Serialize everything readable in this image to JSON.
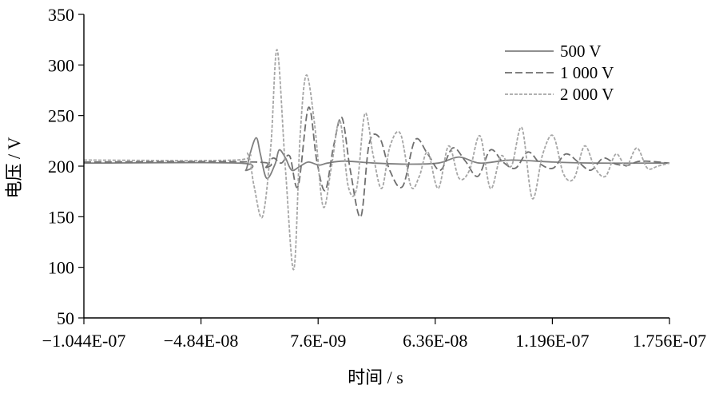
{
  "chart_data": {
    "type": "line",
    "xlabel": "时间 / s",
    "ylabel": "电压 / V",
    "x_tick_labels": [
      "−1.044E-07",
      "−4.84E-08",
      "7.6E-09",
      "6.36E-08",
      "1.196E-07",
      "1.756E-07"
    ],
    "x_tick_values": [
      -1.044e-07,
      -4.84e-08,
      7.6e-09,
      6.36e-08,
      1.196e-07,
      1.756e-07
    ],
    "xlim": [
      -1.044e-07,
      1.756e-07
    ],
    "ylim": [
      50,
      350
    ],
    "y_ticks": [
      50,
      100,
      150,
      200,
      250,
      300,
      350
    ],
    "grid": false,
    "legend_position": "top-right",
    "series": [
      {
        "name": "500 V",
        "color": "#7f7f7f",
        "style": "solid",
        "x": [
          -1.044e-07,
          -3e-08,
          -2.7e-08,
          -2.5e-08,
          -2.2e-08,
          -2e-08,
          -1.7e-08,
          -1.3e-08,
          -1.1e-08,
          -8e-09,
          -5e-09,
          -1e-09,
          3e-09,
          8e-09,
          1.2e-08,
          2e-08,
          3.5e-08,
          5e-08,
          6.5e-08,
          7.5e-08,
          8.5e-08,
          1e-07,
          1.2e-07,
          1.4e-07,
          1.756e-07
        ],
        "y": [
          203,
          203,
          196,
          212,
          228,
          212,
          188,
          202,
          216,
          208,
          196,
          200,
          204,
          201,
          203,
          205,
          203,
          202,
          203,
          209,
          203,
          206,
          204,
          203,
          203
        ]
      },
      {
        "name": "1 000 V",
        "color": "#6f6f6f",
        "style": "dashed",
        "x": [
          -1.044e-07,
          -2.2e-08,
          -1.8e-08,
          -1.4e-08,
          -1e-08,
          -6e-09,
          -2e-09,
          3e-09,
          7e-09,
          1.1e-08,
          1.5e-08,
          1.9e-08,
          2.3e-08,
          2.8e-08,
          3.2e-08,
          3.7e-08,
          4.2e-08,
          4.8e-08,
          5.4e-08,
          6e-08,
          6.6e-08,
          7.2e-08,
          7.8e-08,
          8.4e-08,
          9e-08,
          9.6e-08,
          1.02e-07,
          1.08e-07,
          1.14e-07,
          1.2e-07,
          1.26e-07,
          1.32e-07,
          1.38e-07,
          1.44e-07,
          1.5e-07,
          1.56e-07,
          1.62e-07,
          1.756e-07
        ],
        "y": [
          204,
          204,
          198,
          208,
          203,
          210,
          180,
          258,
          205,
          176,
          220,
          248,
          196,
          150,
          222,
          228,
          195,
          180,
          226,
          212,
          196,
          218,
          205,
          190,
          216,
          204,
          198,
          214,
          202,
          198,
          212,
          204,
          196,
          208,
          202,
          201,
          205,
          203
        ]
      },
      {
        "name": "2 000 V",
        "color": "#a6a6a6",
        "style": "dashed-fine",
        "x": [
          -1.044e-07,
          -3.2e-08,
          -2.6e-08,
          -2.3e-08,
          -1.9e-08,
          -1.5e-08,
          -1.2e-08,
          -8e-09,
          -4e-09,
          -1e-09,
          2e-09,
          6e-09,
          1e-08,
          1.4e-08,
          1.8e-08,
          2.2e-08,
          2.6e-08,
          3e-08,
          3.4e-08,
          3.8e-08,
          4.2e-08,
          4.7e-08,
          5.2e-08,
          5.6e-08,
          6e-08,
          6.5e-08,
          7e-08,
          7.5e-08,
          8e-08,
          8.5e-08,
          9e-08,
          9.5e-08,
          1e-07,
          1.05e-07,
          1.1e-07,
          1.15e-07,
          1.2e-07,
          1.25e-07,
          1.3e-07,
          1.35e-07,
          1.4e-07,
          1.45e-07,
          1.5e-07,
          1.55e-07,
          1.6e-07,
          1.65e-07,
          1.7e-07,
          1.756e-07
        ],
        "y": [
          206,
          206,
          212,
          180,
          150,
          220,
          315,
          196,
          98,
          230,
          290,
          240,
          160,
          200,
          245,
          180,
          178,
          252,
          210,
          178,
          220,
          232,
          180,
          190,
          214,
          178,
          220,
          188,
          196,
          230,
          178,
          210,
          200,
          238,
          168,
          212,
          230,
          192,
          188,
          220,
          198,
          190,
          212,
          200,
          218,
          198,
          200,
          203
        ]
      }
    ]
  }
}
